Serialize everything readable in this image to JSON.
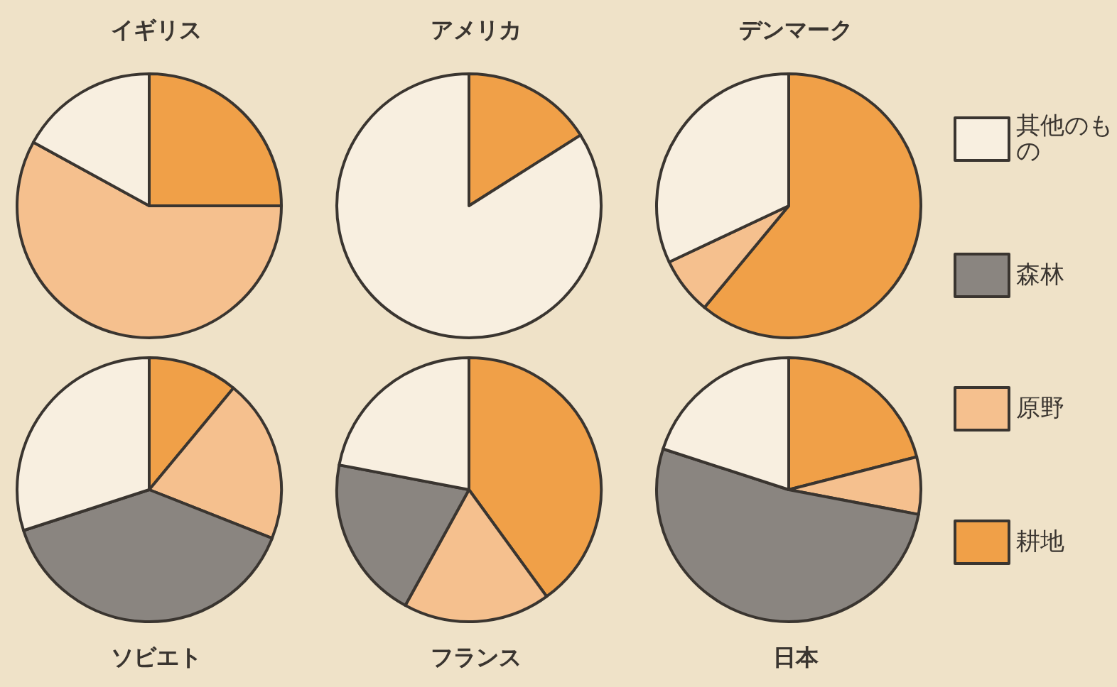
{
  "chart_data": {
    "type": "pie",
    "categories": [
      "耕地",
      "原野",
      "森林",
      "其他のもの"
    ],
    "colors": [
      "#f0a048",
      "#f5c08e",
      "#8a8580",
      "#f8efe0"
    ],
    "legend": "right",
    "series": [
      {
        "name": "イギリス",
        "values": [
          25,
          58,
          0,
          17
        ]
      },
      {
        "name": "アメリカ",
        "values": [
          16,
          0,
          0,
          84
        ]
      },
      {
        "name": "デンマーク",
        "values": [
          61,
          7,
          0,
          32
        ]
      },
      {
        "name": "ソビエト",
        "values": [
          11,
          20,
          39,
          30
        ]
      },
      {
        "name": "フランス",
        "values": [
          40,
          18,
          20,
          22
        ]
      },
      {
        "name": "日本",
        "values": [
          21,
          7,
          52,
          20
        ]
      }
    ]
  }
}
